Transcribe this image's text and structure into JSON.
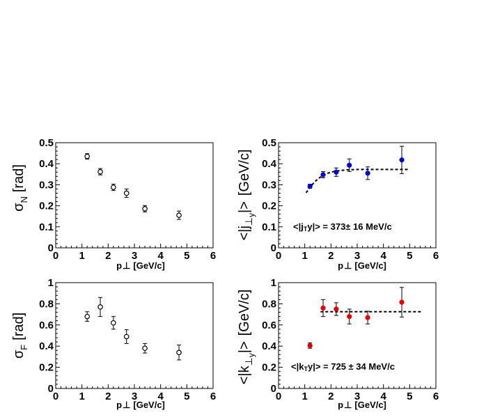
{
  "chart_data": [
    {
      "type": "scatter",
      "id": "sigmaN",
      "xlabel": "p⊥ [GeV/c]",
      "ylabel": "σN  [rad]",
      "xlim": [
        0,
        6
      ],
      "ylim": [
        0,
        0.5
      ],
      "xticks": [
        0,
        1,
        2,
        3,
        4,
        5,
        6
      ],
      "yticks": [
        0,
        0.1,
        0.2,
        0.3,
        0.4,
        0.5
      ],
      "xtick_labels": [
        "0",
        "1",
        "2",
        "3",
        "4",
        "5",
        "6"
      ],
      "ytick_labels": [
        "0",
        "0.1",
        "0.2",
        "0.3",
        "0.4",
        "0.5"
      ],
      "grid": false,
      "series": [
        {
          "marker": "open-circle",
          "color": "#000000",
          "x": [
            1.2,
            1.7,
            2.2,
            2.7,
            3.4,
            4.7
          ],
          "y": [
            0.435,
            0.362,
            0.288,
            0.26,
            0.186,
            0.155
          ],
          "yerr": [
            0.013,
            0.015,
            0.015,
            0.02,
            0.015,
            0.02
          ]
        }
      ]
    },
    {
      "type": "scatter",
      "id": "jT",
      "xlabel": "p⊥ [GeV/c]",
      "ylabel": "<|j⊥y|>  [GeV/c]",
      "xlim": [
        0,
        6
      ],
      "ylim": [
        0,
        0.5
      ],
      "xticks": [
        0,
        1,
        2,
        3,
        4,
        5,
        6
      ],
      "yticks": [
        0,
        0.1,
        0.2,
        0.3,
        0.4,
        0.5
      ],
      "xtick_labels": [
        "0",
        "1",
        "2",
        "3",
        "4",
        "5",
        "6"
      ],
      "ytick_labels": [
        "0",
        "0.1",
        "0.2",
        "0.3",
        "0.4",
        "0.5"
      ],
      "grid": false,
      "annotation": "<|jTy|> = 373± 16 MeV/c",
      "series": [
        {
          "marker": "filled-circle",
          "color": "#0000cc",
          "x": [
            1.2,
            1.7,
            2.2,
            2.7,
            3.4,
            4.7
          ],
          "y": [
            0.293,
            0.348,
            0.36,
            0.393,
            0.355,
            0.418
          ],
          "yerr": [
            0.01,
            0.015,
            0.02,
            0.03,
            0.03,
            0.065
          ]
        }
      ],
      "fit": {
        "style": "dashed",
        "color": "#000000",
        "plateau": 0.373,
        "x": [
          1.05,
          1.2,
          1.35,
          1.5,
          1.7,
          1.9,
          2.1,
          2.3,
          2.6,
          3.0,
          4.0,
          5.0
        ],
        "y": [
          0.262,
          0.288,
          0.31,
          0.328,
          0.345,
          0.356,
          0.363,
          0.367,
          0.371,
          0.373,
          0.373,
          0.373
        ]
      }
    },
    {
      "type": "scatter",
      "id": "sigmaF",
      "xlabel": "p⊥ [GeV/c]",
      "ylabel": "σF  [rad]",
      "xlim": [
        0,
        6
      ],
      "ylim": [
        0,
        1
      ],
      "xticks": [
        0,
        1,
        2,
        3,
        4,
        5,
        6
      ],
      "yticks": [
        0,
        0.2,
        0.4,
        0.6,
        0.8,
        1
      ],
      "xtick_labels": [
        "0",
        "1",
        "2",
        "3",
        "4",
        "5",
        "6"
      ],
      "ytick_labels": [
        "0",
        "0.2",
        "0.4",
        "0.6",
        "0.8",
        "1"
      ],
      "grid": false,
      "series": [
        {
          "marker": "open-circle",
          "color": "#000000",
          "x": [
            1.2,
            1.7,
            2.2,
            2.7,
            3.4,
            4.7
          ],
          "y": [
            0.68,
            0.77,
            0.62,
            0.49,
            0.38,
            0.34
          ],
          "yerr": [
            0.045,
            0.09,
            0.06,
            0.065,
            0.045,
            0.07
          ]
        }
      ]
    },
    {
      "type": "scatter",
      "id": "kT",
      "xlabel": "p⊥ [GeV/c]",
      "ylabel": "<|k⊥y|>  [GeV/c]",
      "xlim": [
        0,
        6
      ],
      "ylim": [
        0,
        1
      ],
      "xticks": [
        0,
        1,
        2,
        3,
        4,
        5,
        6
      ],
      "yticks": [
        0,
        0.2,
        0.4,
        0.6,
        0.8,
        1
      ],
      "xtick_labels": [
        "0",
        "1",
        "2",
        "3",
        "4",
        "5",
        "6"
      ],
      "ytick_labels": [
        "0",
        "0.2",
        "0.4",
        "0.6",
        "0.8",
        "1"
      ],
      "grid": false,
      "annotation": "<|kTy|> = 725 ± 34 MeV/c",
      "series": [
        {
          "marker": "filled-circle",
          "color": "#dd0000",
          "x": [
            1.2,
            1.7,
            2.2,
            2.7,
            3.4,
            4.7
          ],
          "y": [
            0.405,
            0.76,
            0.75,
            0.68,
            0.67,
            0.815
          ],
          "yerr": [
            0.025,
            0.08,
            0.06,
            0.07,
            0.06,
            0.14
          ]
        }
      ],
      "fit": {
        "style": "dashed",
        "color": "#000000",
        "plateau": 0.725,
        "x": [
          1.6,
          5.5
        ],
        "y": [
          0.725,
          0.725
        ]
      }
    }
  ]
}
